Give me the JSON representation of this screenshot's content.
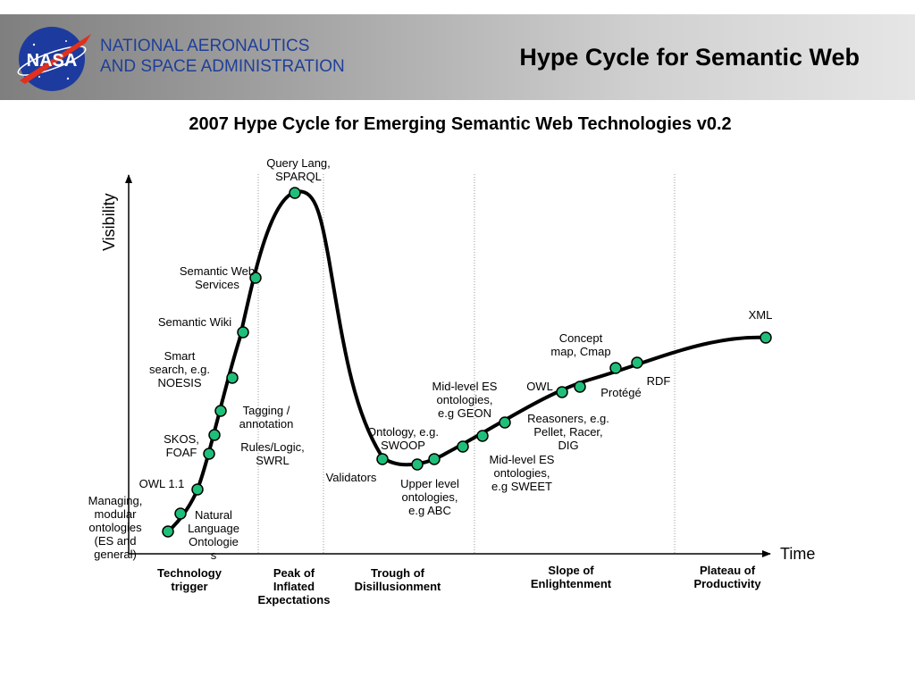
{
  "header": {
    "org_line1": "NATIONAL AERONAUTICS",
    "org_line2": "AND SPACE ADMINISTRATION",
    "logo_text": "NASA",
    "title": "Hype Cycle for Semantic Web"
  },
  "subtitle": "2007 Hype Cycle for Emerging Semantic Web Technologies v0.2",
  "axes": {
    "y_label": "Visibility",
    "x_label": "Time"
  },
  "phases": [
    {
      "lines": [
        "Technology",
        "trigger"
      ]
    },
    {
      "lines": [
        "Peak of",
        "Inflated",
        "Expectations"
      ]
    },
    {
      "lines": [
        "Trough of",
        "Disillusionment"
      ]
    },
    {
      "lines": [
        "Slope of",
        "Enlightenment"
      ]
    },
    {
      "lines": [
        "Plateau of",
        "Productivity"
      ]
    }
  ],
  "technologies": [
    {
      "lines": [
        "Managing,",
        "modular",
        "ontologies",
        "(ES and",
        "general)"
      ]
    },
    {
      "lines": [
        "Natural",
        "Language",
        "Ontologie",
        "s"
      ]
    },
    {
      "lines": [
        "OWL 1.1"
      ]
    },
    {
      "lines": [
        "SKOS,",
        "FOAF"
      ]
    },
    {
      "lines": [
        "Rules/Logic,",
        "SWRL"
      ]
    },
    {
      "lines": [
        "Tagging /",
        "annotation"
      ]
    },
    {
      "lines": [
        "Smart",
        "search, e.g.",
        "NOESIS"
      ]
    },
    {
      "lines": [
        "Semantic Wiki"
      ]
    },
    {
      "lines": [
        "Semantic Web",
        "Services"
      ]
    },
    {
      "lines": [
        "Query Lang,",
        "SPARQL"
      ]
    },
    {
      "lines": [
        "Validators"
      ]
    },
    {
      "lines": [
        "Ontology, e.g.",
        "SWOOP"
      ]
    },
    {
      "lines": [
        "Upper level",
        "ontologies,",
        "e.g ABC"
      ]
    },
    {
      "lines": [
        "Mid-level ES",
        "ontologies,",
        "e.g GEON"
      ]
    },
    {
      "lines": [
        "Mid-level ES",
        "ontologies,",
        "e.g SWEET"
      ]
    },
    {
      "lines": [
        "Reasoners, e.g.",
        "Pellet, Racer,",
        "DIG"
      ]
    },
    {
      "lines": [
        "OWL"
      ]
    },
    {
      "lines": [
        "Protégé"
      ]
    },
    {
      "lines": [
        "Concept",
        "map, Cmap"
      ]
    },
    {
      "lines": [
        "RDF"
      ]
    },
    {
      "lines": [
        "XML"
      ]
    }
  ],
  "colors": {
    "marker": "#1fbf7a",
    "curve": "#000000",
    "org_text": "#1f3f99"
  }
}
